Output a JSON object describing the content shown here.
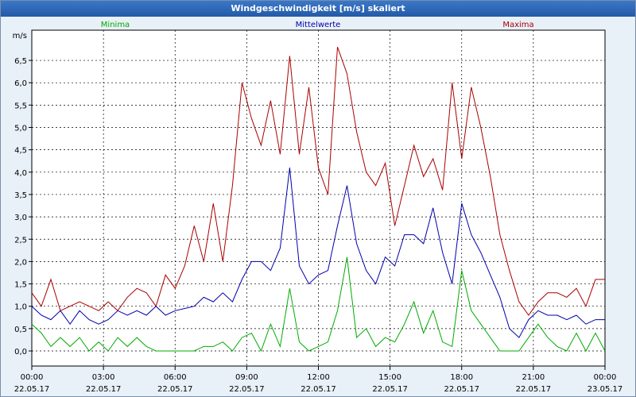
{
  "window": {
    "title": "Windgeschwindigkeit [m/s] skaliert"
  },
  "colors": {
    "minima": "#00aa00",
    "mittelwerte": "#0000aa",
    "maxima": "#aa0000"
  },
  "chart_data": {
    "type": "line",
    "title": "Windgeschwindigkeit [m/s] skaliert",
    "ylabel": "m/s",
    "ylim": [
      0,
      7.1
    ],
    "yticks": [
      "0,0",
      "0,5",
      "1,0",
      "1,5",
      "2,0",
      "2,5",
      "3,0",
      "3,5",
      "4,0",
      "4,5",
      "5,0",
      "5,5",
      "6,0",
      "6,5"
    ],
    "xlim": [
      0,
      24
    ],
    "xticks": [
      {
        "time": "00:00",
        "date": "22.05.17"
      },
      {
        "time": "03:00",
        "date": "22.05.17"
      },
      {
        "time": "06:00",
        "date": "22.05.17"
      },
      {
        "time": "09:00",
        "date": "22.05.17"
      },
      {
        "time": "12:00",
        "date": "22.05.17"
      },
      {
        "time": "15:00",
        "date": "22.05.17"
      },
      {
        "time": "18:00",
        "date": "22.05.17"
      },
      {
        "time": "21:00",
        "date": "22.05.17"
      },
      {
        "time": "00:00",
        "date": "23.05.17"
      }
    ],
    "grid": true,
    "series": [
      {
        "name": "Minima",
        "x": [
          0,
          0.4,
          0.8,
          1.2,
          1.6,
          2.0,
          2.4,
          2.8,
          3.2,
          3.6,
          4.0,
          4.4,
          4.8,
          5.2,
          5.6,
          6.0,
          6.4,
          6.8,
          7.2,
          7.6,
          8.0,
          8.4,
          8.8,
          9.2,
          9.6,
          10.0,
          10.4,
          10.8,
          11.2,
          11.6,
          12.0,
          12.4,
          12.8,
          13.2,
          13.6,
          14.0,
          14.4,
          14.8,
          15.2,
          15.6,
          16.0,
          16.4,
          16.8,
          17.2,
          17.6,
          18.0,
          18.4,
          18.8,
          19.2,
          19.6,
          20.0,
          20.4,
          20.8,
          21.2,
          21.6,
          22.0,
          22.4,
          22.8,
          23.2,
          23.6,
          24.0
        ],
        "values": [
          0.6,
          0.4,
          0.1,
          0.3,
          0.1,
          0.3,
          0.0,
          0.2,
          0.0,
          0.3,
          0.1,
          0.3,
          0.1,
          0.0,
          0.0,
          0.0,
          0.0,
          0.0,
          0.1,
          0.1,
          0.2,
          0.0,
          0.3,
          0.4,
          0.0,
          0.6,
          0.1,
          1.4,
          0.2,
          0.0,
          0.1,
          0.2,
          0.9,
          2.1,
          0.3,
          0.5,
          0.1,
          0.3,
          0.2,
          0.6,
          1.1,
          0.4,
          0.9,
          0.2,
          0.1,
          1.8,
          0.9,
          0.6,
          0.3,
          0.0,
          0.0,
          0.0,
          0.3,
          0.6,
          0.3,
          0.1,
          0.0,
          0.4,
          0.0,
          0.4,
          0.0
        ]
      },
      {
        "name": "Mittelwerte",
        "x": [
          0,
          0.4,
          0.8,
          1.2,
          1.6,
          2.0,
          2.4,
          2.8,
          3.2,
          3.6,
          4.0,
          4.4,
          4.8,
          5.2,
          5.6,
          6.0,
          6.4,
          6.8,
          7.2,
          7.6,
          8.0,
          8.4,
          8.8,
          9.2,
          9.6,
          10.0,
          10.4,
          10.8,
          11.2,
          11.6,
          12.0,
          12.4,
          12.8,
          13.2,
          13.6,
          14.0,
          14.4,
          14.8,
          15.2,
          15.6,
          16.0,
          16.4,
          16.8,
          17.2,
          17.6,
          18.0,
          18.4,
          18.8,
          19.2,
          19.6,
          20.0,
          20.4,
          20.8,
          21.2,
          21.6,
          22.0,
          22.4,
          22.8,
          23.2,
          23.6,
          24.0
        ],
        "values": [
          1.0,
          0.8,
          0.7,
          0.9,
          0.6,
          0.9,
          0.7,
          0.6,
          0.7,
          0.9,
          0.8,
          0.9,
          0.8,
          1.0,
          0.8,
          0.9,
          0.95,
          1.0,
          1.2,
          1.1,
          1.3,
          1.1,
          1.6,
          2.0,
          2.0,
          1.8,
          2.3,
          4.1,
          1.9,
          1.5,
          1.7,
          1.8,
          2.8,
          3.7,
          2.4,
          1.8,
          1.5,
          2.1,
          1.9,
          2.6,
          2.6,
          2.4,
          3.2,
          2.2,
          1.5,
          3.3,
          2.6,
          2.2,
          1.7,
          1.2,
          0.5,
          0.3,
          0.7,
          0.9,
          0.8,
          0.8,
          0.7,
          0.8,
          0.6,
          0.7,
          0.7
        ]
      },
      {
        "name": "Maxima",
        "x": [
          0,
          0.4,
          0.8,
          1.2,
          1.6,
          2.0,
          2.4,
          2.8,
          3.2,
          3.6,
          4.0,
          4.4,
          4.8,
          5.2,
          5.6,
          6.0,
          6.4,
          6.8,
          7.2,
          7.6,
          8.0,
          8.4,
          8.8,
          9.2,
          9.6,
          10.0,
          10.4,
          10.8,
          11.2,
          11.6,
          12.0,
          12.4,
          12.8,
          13.2,
          13.6,
          14.0,
          14.4,
          14.8,
          15.2,
          15.6,
          16.0,
          16.4,
          16.8,
          17.2,
          17.6,
          18.0,
          18.4,
          18.8,
          19.2,
          19.6,
          20.0,
          20.4,
          20.8,
          21.2,
          21.6,
          22.0,
          22.4,
          22.8,
          23.2,
          23.6,
          24.0
        ],
        "values": [
          1.3,
          1.0,
          1.6,
          0.9,
          1.0,
          1.1,
          1.0,
          0.9,
          1.1,
          0.9,
          1.2,
          1.4,
          1.3,
          1.0,
          1.7,
          1.4,
          1.9,
          2.8,
          2.0,
          3.3,
          2.0,
          3.7,
          6.0,
          5.2,
          4.6,
          5.6,
          4.4,
          6.6,
          4.4,
          5.9,
          4.1,
          3.5,
          6.8,
          6.2,
          4.9,
          4.0,
          3.7,
          4.2,
          2.8,
          3.7,
          4.6,
          3.9,
          4.3,
          3.6,
          6.0,
          4.3,
          5.9,
          5.0,
          3.9,
          2.6,
          1.8,
          1.1,
          0.8,
          1.1,
          1.3,
          1.3,
          1.2,
          1.4,
          1.0,
          1.6,
          1.6
        ]
      }
    ]
  }
}
